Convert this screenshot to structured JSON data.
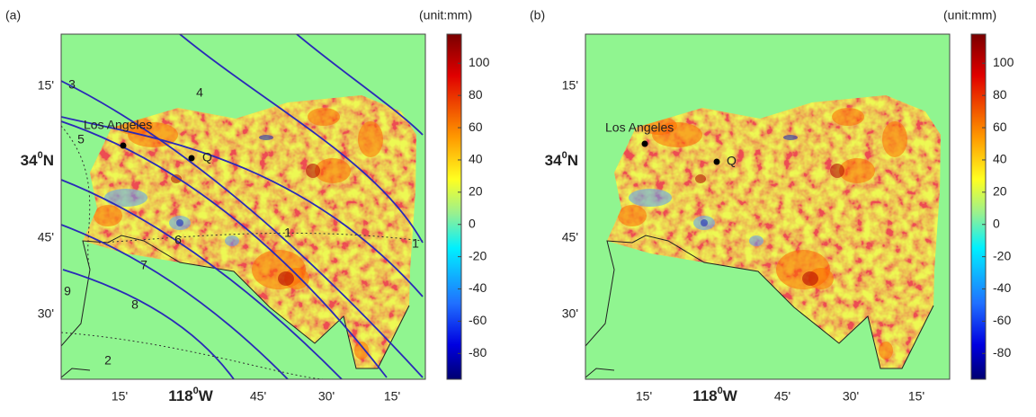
{
  "panels": [
    {
      "label": "(a)",
      "unit": "(unit:mm)",
      "colorbar": {
        "lim": [
          -96,
          118
        ],
        "ticks": [
          100,
          80,
          60,
          40,
          20,
          0,
          -20,
          -40,
          -60,
          -80
        ]
      },
      "xticks": [
        "15'",
        {
          "text": "118",
          "sup": "0",
          "suffix": "W"
        },
        "45'",
        "30'",
        "15'"
      ],
      "yticks": [
        "15'",
        {
          "text": "34",
          "sup": "0",
          "suffix": "N"
        },
        "45'",
        "30'"
      ],
      "places": [
        "Los Angeles",
        "Q"
      ],
      "contour_labels": [
        "3",
        "4",
        "5",
        "6",
        "7",
        "8",
        "9",
        "2",
        "1",
        "1"
      ]
    },
    {
      "label": "(b)",
      "unit": "(unit:mm)",
      "colorbar": {
        "lim": [
          -96,
          118
        ],
        "ticks": [
          100,
          80,
          60,
          40,
          20,
          0,
          -20,
          -40,
          -60,
          -80
        ]
      },
      "xticks": [
        "15'",
        {
          "text": "118",
          "sup": "0",
          "suffix": "W"
        },
        "45'",
        "30'",
        "15'"
      ],
      "yticks": [
        "15'",
        {
          "text": "34",
          "sup": "0",
          "suffix": "N"
        },
        "45'",
        "30'"
      ],
      "places": [
        "Los Angeles",
        "Q"
      ]
    }
  ]
}
